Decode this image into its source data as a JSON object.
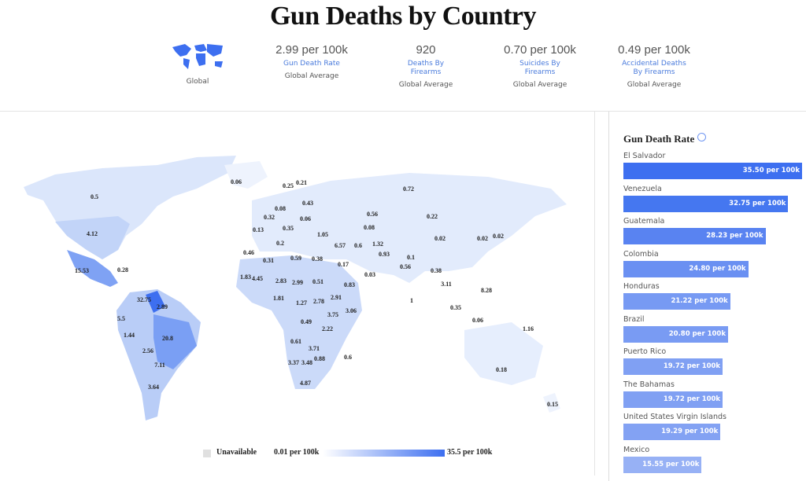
{
  "header": {
    "title": "Gun Deaths by Country",
    "global_label": "Global"
  },
  "stats": [
    {
      "value": "2.99 per 100k",
      "label": "Gun Death Rate",
      "scope": "Global Average"
    },
    {
      "value": "920",
      "label": "Deaths By Firearms",
      "scope": "Global Average"
    },
    {
      "value": "0.70 per 100k",
      "label": "Suicides By Firearms",
      "scope": "Global Average"
    },
    {
      "value": "0.49 per 100k",
      "label": "Accidental Deaths By Firearms",
      "scope": "Global Average"
    }
  ],
  "map": {
    "labels": [
      0.06,
      0.21,
      0.25,
      0.72,
      0.5,
      0.43,
      0.08,
      0.56,
      0.22,
      0.32,
      0.06,
      0.08,
      0.35,
      0.13,
      4.12,
      1.05,
      0.02,
      0.02,
      0.02,
      0.2,
      6.57,
      0.6,
      1.32,
      0.46,
      0.93,
      0.59,
      0.38,
      0.1,
      0.31,
      0.17,
      0.56,
      0.38,
      15.53,
      0.28,
      0.03,
      1.83,
      4.45,
      2.83,
      2.99,
      0.51,
      0.83,
      3.11,
      8.28,
      32.75,
      2.91,
      1.81,
      1.27,
      2.78,
      1,
      2.89,
      0.35,
      3.06,
      3.75,
      5.5,
      0.06,
      0.49,
      2.22,
      1.16,
      1.44,
      20.8,
      0.61,
      3.71,
      2.56,
      0.88,
      0.6,
      3.37,
      3.48,
      7.11,
      0.18,
      4.87,
      3.64,
      0.15
    ],
    "legend": {
      "unavailable": "Unavailable",
      "min": "0.01 per 100k",
      "max": "35.5 per 100k"
    }
  },
  "chart_data": {
    "type": "bar",
    "orientation": "horizontal",
    "title": "Gun Death Rate",
    "categories": [
      "El Salvador",
      "Venezuela",
      "Guatemala",
      "Colombia",
      "Honduras",
      "Brazil",
      "Puerto Rico",
      "The Bahamas",
      "United States Virgin Islands",
      "Mexico"
    ],
    "values": [
      35.5,
      32.75,
      28.23,
      24.8,
      21.22,
      20.8,
      19.72,
      19.72,
      19.29,
      15.55
    ],
    "value_labels": [
      "35.50 per 100k",
      "32.75 per 100k",
      "28.23 per 100k",
      "24.80 per 100k",
      "21.22 per 100k",
      "20.80 per 100k",
      "19.72 per 100k",
      "19.72 per 100k",
      "19.29 per 100k",
      "15.55 per 100k"
    ],
    "colors": [
      "#3d6ff0",
      "#4577f0",
      "#5983f1",
      "#6a90f2",
      "#779af3",
      "#799bf3",
      "#80a0f3",
      "#80a0f3",
      "#83a2f3",
      "#97b1f5"
    ]
  }
}
